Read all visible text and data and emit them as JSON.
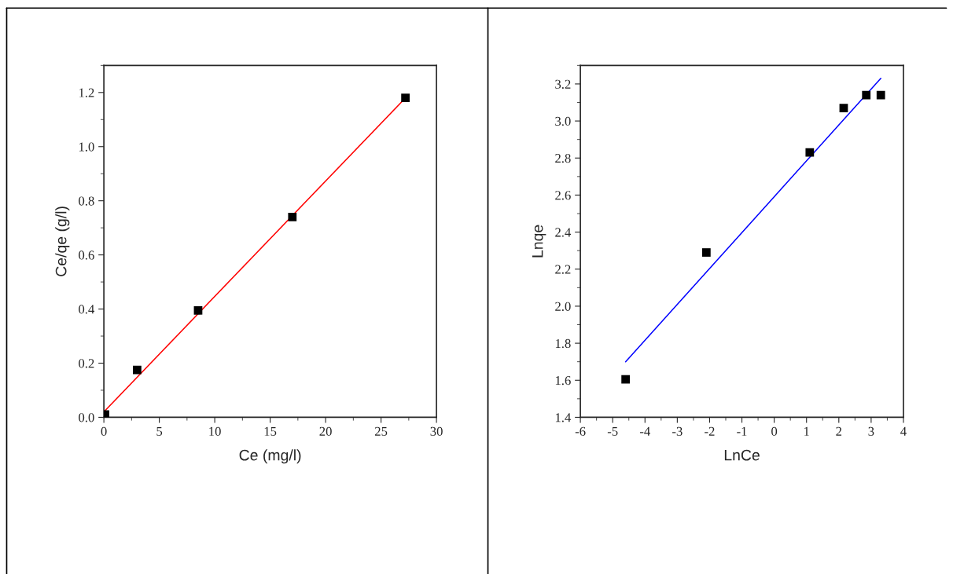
{
  "chart_data": [
    {
      "type": "scatter",
      "xlabel": "Ce (mg/l)",
      "ylabel": "Ce/qe (g/l)",
      "xlim": [
        0,
        30
      ],
      "ylim": [
        0,
        1.3
      ],
      "xticks": [
        0,
        5,
        10,
        15,
        20,
        25,
        30
      ],
      "yticks": [
        {
          "value": 0,
          "label": "0.0"
        },
        0.2,
        0.4,
        0.6,
        0.8,
        {
          "value": 1,
          "label": "1.0"
        },
        1.2
      ],
      "grid": false,
      "legend": false,
      "series": [
        {
          "color": "#000000",
          "marker": "square",
          "x": [
            0.1,
            3,
            8.5,
            17,
            27.2
          ],
          "values": [
            0.01,
            0.175,
            0.395,
            0.74,
            1.18
          ]
        },
        {
          "type": "line",
          "color": "#ff0000",
          "line_style": "solid",
          "marker": "none",
          "x": [
            0,
            27.2
          ],
          "values": [
            0.02,
            1.18
          ]
        }
      ]
    },
    {
      "type": "scatter",
      "xlabel": "LnCe",
      "ylabel": "Lnqe",
      "xlim": [
        -6,
        4
      ],
      "ylim": [
        1.4,
        3.3
      ],
      "xticks": [
        -6,
        -5,
        -4,
        -3,
        -2,
        -1,
        0,
        1,
        2,
        3,
        4
      ],
      "yticks": [
        1.4,
        1.6,
        1.8,
        {
          "value": 2,
          "label": "2.0"
        },
        2.2,
        2.4,
        2.6,
        2.8,
        {
          "value": 3,
          "label": "3.0"
        },
        3.2
      ],
      "grid": false,
      "legend": false,
      "series": [
        {
          "color": "#000000",
          "marker": "square",
          "x": [
            -4.6,
            -2.1,
            1.1,
            2.15,
            2.85,
            3.3
          ],
          "values": [
            1.605,
            2.29,
            2.83,
            3.07,
            3.14,
            3.14
          ]
        },
        {
          "type": "line",
          "color": "#0000ff",
          "line_style": "solid",
          "marker": "none",
          "x": [
            -4.6,
            3.3
          ],
          "values": [
            1.7,
            3.23
          ]
        }
      ]
    }
  ]
}
